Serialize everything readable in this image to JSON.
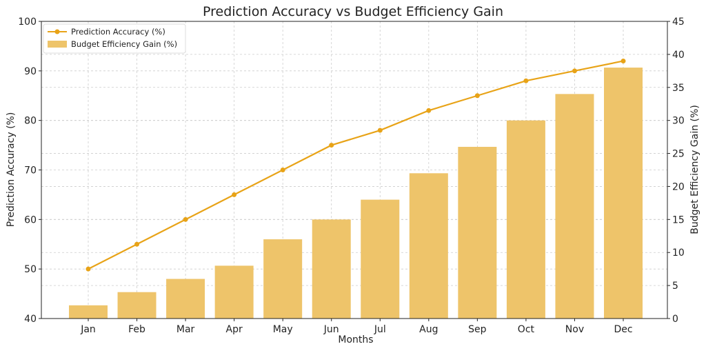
{
  "chart_data": {
    "type": "bar+line",
    "title": "Prediction Accuracy vs Budget Efficiency Gain",
    "xlabel": "Months",
    "ylabel_left": "Prediction Accuracy (%)",
    "ylabel_right": "Budget Efficiency Gain (%)",
    "categories": [
      "Jan",
      "Feb",
      "Mar",
      "Apr",
      "May",
      "Jun",
      "Jul",
      "Aug",
      "Sep",
      "Oct",
      "Nov",
      "Dec"
    ],
    "ylim_left": [
      40,
      100
    ],
    "ylim_right": [
      0,
      45
    ],
    "yticks_left": [
      40,
      50,
      60,
      70,
      80,
      90,
      100
    ],
    "yticks_right": [
      0,
      5,
      10,
      15,
      20,
      25,
      30,
      35,
      40,
      45
    ],
    "grid": true,
    "legend_position": "top-left",
    "series": [
      {
        "name": "Prediction Accuracy (%)",
        "type": "line",
        "axis": "left",
        "color": "#E8A317",
        "values": [
          50,
          55,
          60,
          65,
          70,
          75,
          78,
          82,
          85,
          88,
          90,
          92
        ]
      },
      {
        "name": "Budget Efficiency Gain (%)",
        "type": "bar",
        "axis": "right",
        "color": "#EEC46A",
        "values": [
          2,
          4,
          6,
          8,
          12,
          15,
          18,
          22,
          26,
          30,
          34,
          38
        ]
      }
    ]
  }
}
